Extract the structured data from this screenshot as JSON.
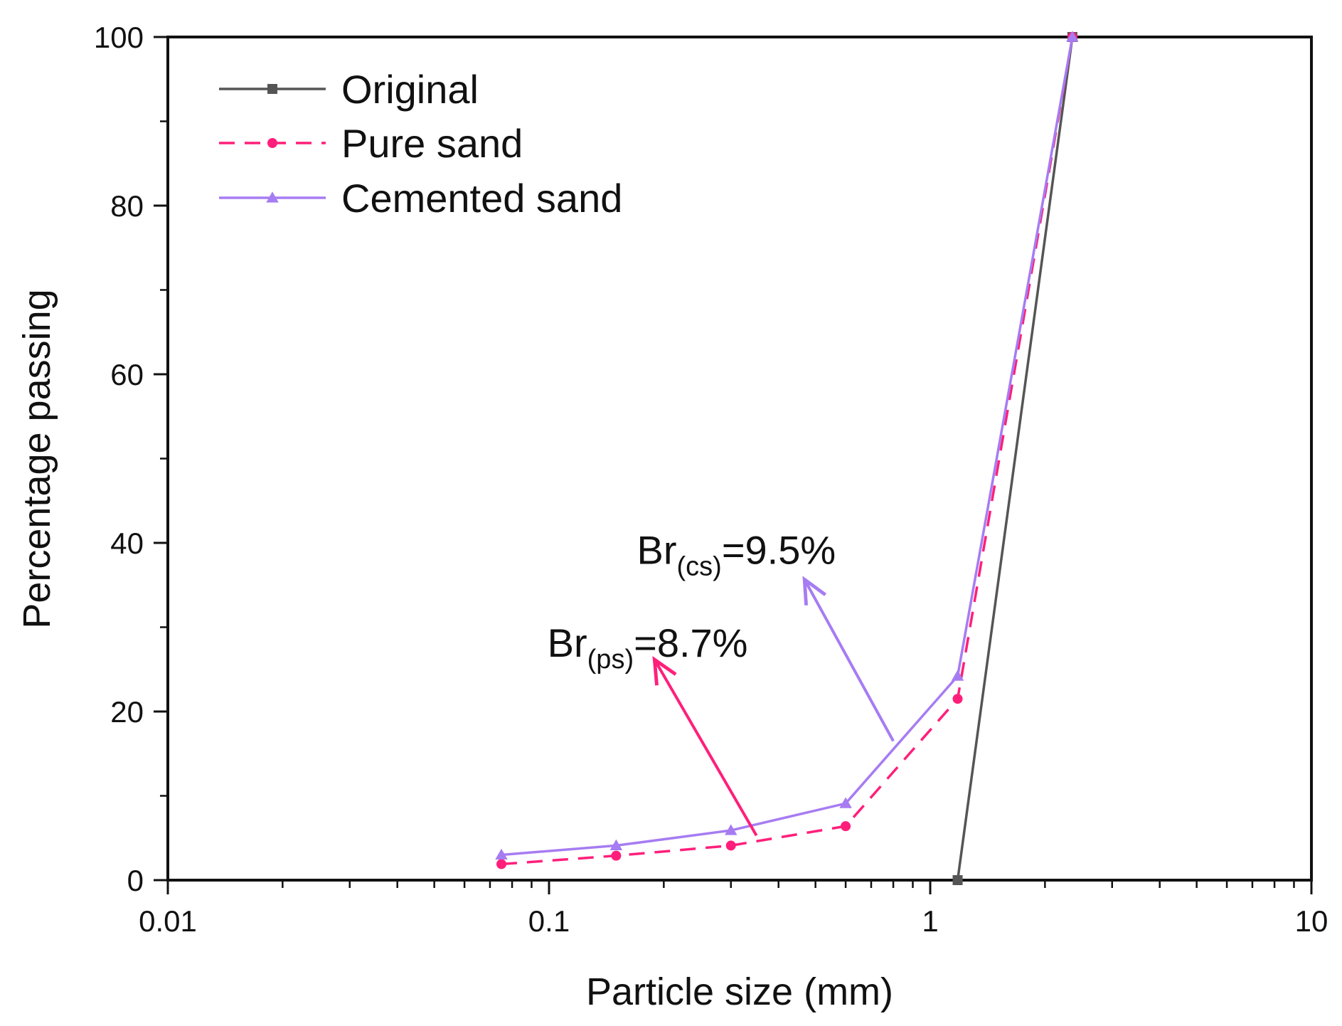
{
  "chart_data": {
    "type": "line",
    "xlabel": "Particle size (mm)",
    "ylabel": "Percentage passing",
    "x_scale": "log",
    "xlim": [
      0.01,
      10
    ],
    "ylim": [
      0,
      100
    ],
    "x_ticks": [
      {
        "value": 0.01,
        "label": "0.01"
      },
      {
        "value": 0.1,
        "label": "0.1"
      },
      {
        "value": 1,
        "label": "1"
      },
      {
        "value": 10,
        "label": "10"
      }
    ],
    "y_ticks": [
      {
        "value": 0,
        "label": "0"
      },
      {
        "value": 20,
        "label": "20"
      },
      {
        "value": 40,
        "label": "40"
      },
      {
        "value": 60,
        "label": "60"
      },
      {
        "value": 80,
        "label": "80"
      },
      {
        "value": 100,
        "label": "100"
      }
    ],
    "grid": false,
    "legend_position": "top-left",
    "series": [
      {
        "name": "Original",
        "color": "#555555",
        "dash": "solid",
        "marker": "square",
        "x": [
          1.18,
          2.36
        ],
        "y": [
          0,
          100
        ]
      },
      {
        "name": "Pure sand",
        "color": "#ff1f7a",
        "dash": "dashed",
        "marker": "circle",
        "x": [
          0.075,
          0.15,
          0.3,
          0.6,
          1.18,
          2.36
        ],
        "y": [
          1.9,
          2.9,
          4.1,
          6.4,
          21.5,
          100
        ]
      },
      {
        "name": "Cemented sand",
        "color": "#a67cf2",
        "dash": "solid",
        "marker": "triangle",
        "x": [
          0.075,
          0.15,
          0.3,
          0.6,
          1.18,
          2.36
        ],
        "y": [
          3.0,
          4.1,
          5.9,
          9.1,
          24.2,
          100
        ]
      }
    ],
    "annotations": [
      {
        "id": "cs",
        "main": "Br",
        "sub": "(cs)",
        "value": "=9.5%",
        "color": "#a67cf2",
        "text_pos": [
          0.17,
          37.5
        ],
        "arrow_from": [
          0.8,
          16.5
        ],
        "arrow_to": [
          0.47,
          35.5
        ]
      },
      {
        "id": "ps",
        "main": "Br",
        "sub": "(ps)",
        "value": "=8.7%",
        "color": "#ff1f7a",
        "text_pos": [
          0.099,
          26.5
        ],
        "arrow_from": [
          0.35,
          5.3
        ],
        "arrow_to": [
          0.19,
          26.0
        ]
      }
    ]
  }
}
